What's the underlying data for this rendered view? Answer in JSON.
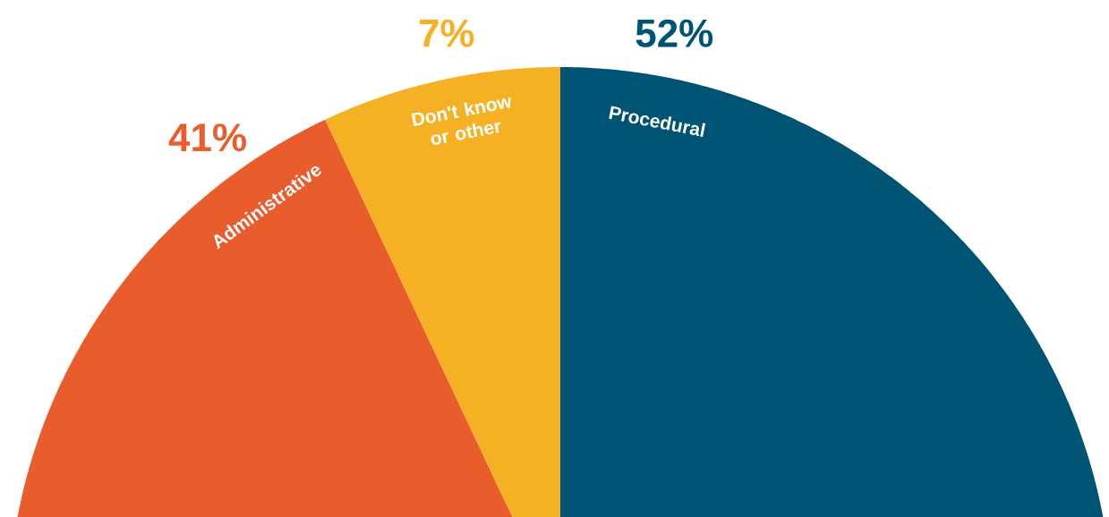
{
  "chart_data": {
    "type": "pie",
    "categories": [
      "Procedural",
      "Administrative",
      "Don't know or other"
    ],
    "values": [
      52,
      41,
      7
    ],
    "colors": [
      "#005473",
      "#e95c2c",
      "#f6b024"
    ],
    "value_labels": [
      "52%",
      "41%",
      "7%"
    ]
  }
}
